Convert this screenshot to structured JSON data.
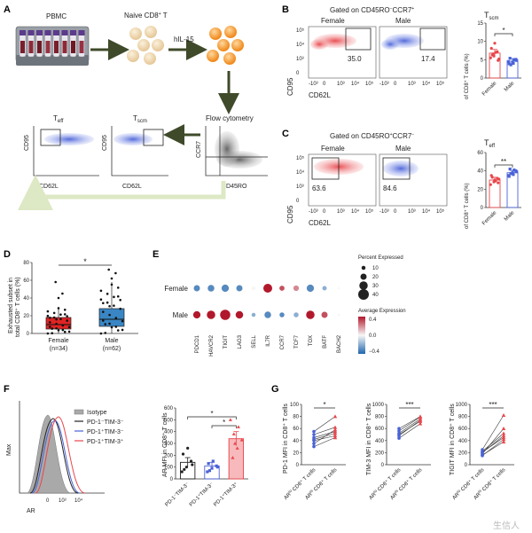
{
  "panels": {
    "A": {
      "label": "A",
      "pbmc": "PBMC",
      "naive": "Naive CD8",
      "naive_sup": "+",
      "naive_tail": " T",
      "cytokine": "hIL-15",
      "flow": "Flow cytometry",
      "teff_main": "T",
      "teff_sub": "eff",
      "tscm_main": "T",
      "tscm_sub": "scm",
      "x_cd62l": "CD62L",
      "y_cd95": "CD95",
      "x_cd45ro": "CD45RO",
      "y_ccr7": "CCR7"
    },
    "B": {
      "label": "B",
      "gate_title": "Gated on CD45RO",
      "gate_title_sup1": "−",
      "gate_title_mid": "CCR7",
      "gate_title_sup2": "+",
      "female": "Female",
      "male": "Male",
      "female_pct": "35.0",
      "male_pct": "17.4",
      "y_axis": "CD95",
      "x_axis": "CD62L",
      "ticks_y": [
        "10⁵",
        "10⁴",
        "10³",
        "0"
      ],
      "ticks_x": [
        "-10³",
        "0",
        "10³",
        "10⁴",
        "10⁵"
      ],
      "bar_title_main": "T",
      "bar_title_sub": "scm",
      "bar_ylabel": "of CD8⁺ T cells (%)",
      "bar_yticks": [
        "0",
        "5",
        "10",
        "15"
      ],
      "sig": "*",
      "categories": [
        "Female",
        "Male"
      ]
    },
    "C": {
      "label": "C",
      "gate_title": "Gated on CD45RO",
      "gate_title_sup1": "+",
      "gate_title_mid": "CCR7",
      "gate_title_sup2": "−",
      "female": "Female",
      "male": "Male",
      "female_pct": "63.6",
      "male_pct": "84.6",
      "y_axis": "CD95",
      "x_axis": "CD62L",
      "ticks_y": [
        "10⁵",
        "10⁴",
        "10³",
        "0"
      ],
      "ticks_x": [
        "-10³",
        "0",
        "10³",
        "10⁴",
        "10⁵"
      ],
      "bar_title_main": "T",
      "bar_title_sub": "eff",
      "bar_ylabel": "of CD8⁺ T cells (%)",
      "bar_yticks": [
        "0",
        "20",
        "40",
        "60"
      ],
      "sig": "**",
      "categories": [
        "Female",
        "Male"
      ]
    },
    "D": {
      "label": "D",
      "ylabel_1": "Exhausted subset in",
      "ylabel_2": "total CD8⁺ T cells (%)",
      "yticks": [
        "0",
        "20",
        "40",
        "60",
        "80"
      ],
      "sig": "*",
      "groups": [
        "Female",
        "Male"
      ],
      "ns": [
        "(n=34)",
        "(n=62)"
      ]
    },
    "E": {
      "label": "E",
      "rows": [
        "Female",
        "Male"
      ],
      "size_title": "Percent Expressed",
      "size_labels": [
        "10",
        "20",
        "30",
        "40"
      ],
      "color_title": "Average Expression",
      "color_labels": [
        "0.4",
        "0.0",
        "−0.4"
      ]
    },
    "F": {
      "label": "F",
      "hist_ylabel": "Max",
      "hist_xlabel": "AR",
      "hist_ticks": [
        "0",
        "10³",
        "10⁴"
      ],
      "legend": [
        "Isotype",
        "PD-1⁻TIM-3⁻",
        "PD-1⁺TIM-3⁻",
        "PD-1⁺TIM-3⁺"
      ],
      "bar_ylabel": "AR MFI in CD8⁺ T cells",
      "bar_yticks": [
        "0",
        "100",
        "200",
        "300",
        "400",
        "500",
        "600"
      ],
      "sig": [
        "*",
        "*"
      ],
      "categories": [
        "PD-1⁻TIM-3⁻",
        "PD-1⁺TIM-3⁻",
        "PD-1⁺TIM-3⁺"
      ]
    },
    "G": {
      "label": "G",
      "plot1_ylabel": "PD-1 MFI in CD8⁺ T cells",
      "plot1_yticks": [
        "0",
        "20",
        "40",
        "60",
        "80",
        "100"
      ],
      "plot1_sig": "*",
      "plot2_ylabel": "TIM-3 MFI in CD8⁺ T cells",
      "plot2_yticks": [
        "0",
        "200",
        "400",
        "600",
        "800",
        "1000"
      ],
      "plot2_sig": "***",
      "plot3_ylabel": "TIGIT MFI in CD8⁺ T cells",
      "plot3_yticks": [
        "0",
        "200",
        "400",
        "600",
        "800",
        "1000"
      ],
      "plot3_sig": "***",
      "x_labels": [
        "AR^lo CD8⁺ T cells",
        "AR^hi CD8⁺ T cells"
      ]
    }
  },
  "watermark": "生信人",
  "colors": {
    "female": "#e8464b",
    "male": "#4a62d8",
    "female_box": "#e02424",
    "male_box": "#3a86c4",
    "bar_third": "#e8464b",
    "dot_high": "#b2182b",
    "dot_low": "#2166ac",
    "arrow": "#3f4a2a"
  },
  "chart_data": [
    {
      "id": "B-bar",
      "type": "bar",
      "title": "Tscm",
      "ylabel": "of CD8+ T cells (%)",
      "ylim": [
        0,
        15
      ],
      "categories": [
        "Female",
        "Male"
      ],
      "values": [
        6.8,
        4.6
      ],
      "errors": [
        1.0,
        0.7
      ],
      "points": [
        [
          5.5,
          6.0,
          7.2,
          8.1,
          9.5,
          4.8,
          6.3,
          7.0,
          5.2,
          6.6
        ],
        [
          3.9,
          4.2,
          5.1,
          5.4,
          4.0,
          4.8,
          3.6,
          5.0,
          4.5
        ]
      ]
    },
    {
      "id": "C-bar",
      "type": "bar",
      "title": "Teff",
      "ylabel": "of CD8+ T cells (%)",
      "ylim": [
        0,
        60
      ],
      "categories": [
        "Female",
        "Male"
      ],
      "values": [
        30,
        38
      ],
      "errors": [
        3,
        2.5
      ],
      "points": [
        [
          25,
          28,
          32,
          35,
          30,
          27,
          33,
          29,
          31
        ],
        [
          34,
          38,
          40,
          42,
          36,
          39,
          37,
          41,
          35
        ]
      ]
    },
    {
      "id": "D-box",
      "type": "box",
      "ylabel": "Exhausted subset in total CD8+ T cells (%)",
      "ylim": [
        0,
        80
      ],
      "categories": [
        "Female",
        "Male"
      ],
      "boxes": [
        {
          "min": 0,
          "q1": 5,
          "median": 10,
          "q3": 18,
          "max": 30
        },
        {
          "min": 0,
          "q1": 8,
          "median": 16,
          "q3": 28,
          "max": 58
        }
      ],
      "outliers": [
        [
          40,
          45,
          58
        ],
        [
          62,
          68,
          72
        ]
      ]
    },
    {
      "id": "E-dot",
      "type": "dot",
      "genes": [
        "PDCD1",
        "HAVCR2",
        "TIGIT",
        "LAG3",
        "SELL",
        "IL7R",
        "CCR7",
        "TCF7",
        "TOX",
        "BATF",
        "BACH2"
      ],
      "groups": [
        "Female",
        "Male"
      ],
      "percent": [
        [
          20,
          22,
          25,
          20,
          12,
          32,
          15,
          17,
          25,
          12,
          3
        ],
        [
          25,
          30,
          38,
          26,
          10,
          22,
          14,
          14,
          30,
          20,
          3
        ]
      ],
      "avg_expr": [
        [
          -0.3,
          -0.3,
          -0.3,
          -0.3,
          0.0,
          0.4,
          0.3,
          0.2,
          -0.3,
          -0.2,
          0.0
        ],
        [
          0.4,
          0.4,
          0.4,
          0.4,
          -0.2,
          -0.3,
          -0.3,
          -0.2,
          0.4,
          0.3,
          0.0
        ]
      ]
    },
    {
      "id": "F-bar",
      "type": "bar",
      "ylabel": "AR MFI in CD8+ T cells",
      "ylim": [
        0,
        600
      ],
      "categories": [
        "PD-1-TIM-3-",
        "PD-1+TIM-3-",
        "PD-1+TIM-3+"
      ],
      "values": [
        140,
        110,
        340
      ],
      "errors": [
        40,
        30,
        60
      ],
      "points": [
        [
          60,
          100,
          150,
          210,
          260,
          120,
          80
        ],
        [
          60,
          90,
          110,
          130,
          150,
          100,
          70
        ],
        [
          180,
          260,
          330,
          380,
          440,
          500,
          300
        ]
      ]
    },
    {
      "id": "G-paired-1",
      "type": "line",
      "ylabel": "PD-1 MFI in CD8+ T cells",
      "ylim": [
        0,
        100
      ],
      "categories": [
        "ARlo",
        "ARhi"
      ],
      "pairs": [
        [
          35,
          58
        ],
        [
          40,
          48
        ],
        [
          42,
          52
        ],
        [
          50,
          62
        ],
        [
          55,
          80
        ],
        [
          30,
          45
        ],
        [
          45,
          55
        ]
      ]
    },
    {
      "id": "G-paired-2",
      "type": "line",
      "ylabel": "TIM-3 MFI in CD8+ T cells",
      "ylim": [
        0,
        1000
      ],
      "categories": [
        "ARlo",
        "ARhi"
      ],
      "pairs": [
        [
          480,
          740
        ],
        [
          520,
          760
        ],
        [
          560,
          790
        ],
        [
          600,
          800
        ],
        [
          440,
          680
        ],
        [
          500,
          720
        ]
      ]
    },
    {
      "id": "G-paired-3",
      "type": "line",
      "ylabel": "TIGIT MFI in CD8+ T cells",
      "ylim": [
        0,
        1000
      ],
      "categories": [
        "ARlo",
        "ARhi"
      ],
      "pairs": [
        [
          150,
          420
        ],
        [
          200,
          480
        ],
        [
          220,
          520
        ],
        [
          180,
          600
        ],
        [
          250,
          820
        ],
        [
          160,
          380
        ],
        [
          210,
          450
        ]
      ]
    }
  ]
}
